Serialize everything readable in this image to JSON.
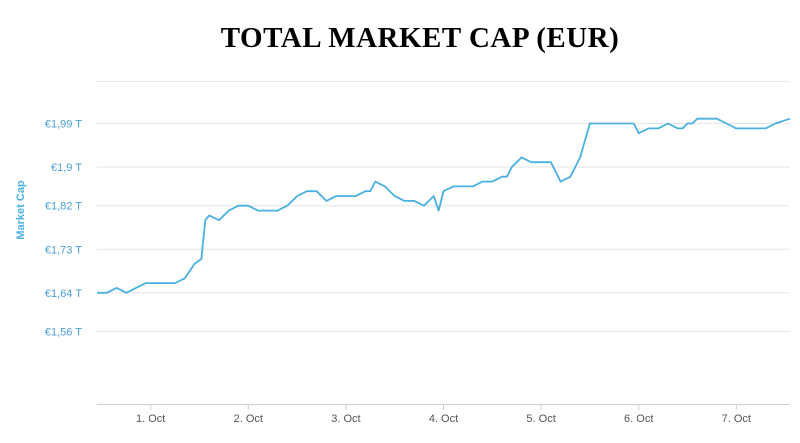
{
  "chart_data": {
    "type": "line",
    "title": "TOTAL MARKET CAP (EUR)",
    "ylabel": "Market Cap",
    "xlabel": "",
    "y_ticks": [
      "€1,56 T",
      "€1,64 T",
      "€1,73 T",
      "€1,82 T",
      "€1,9 T",
      "€1,99 T"
    ],
    "y_tick_values": [
      1.56,
      1.64,
      1.73,
      1.82,
      1.9,
      1.99
    ],
    "x_ticks": [
      "1. Oct",
      "2. Oct",
      "3. Oct",
      "4. Oct",
      "5. Oct",
      "6. Oct",
      "7. Oct"
    ],
    "x_tick_values": [
      1,
      2,
      3,
      4,
      5,
      6,
      7
    ],
    "xlim": [
      0.45,
      7.55
    ],
    "ylim": [
      1.41,
      2.08
    ],
    "grid": true,
    "legend": "none",
    "colors": {
      "line": "#4ab0e0",
      "grid": "#e6e6e6"
    },
    "series": [
      {
        "x": [
          0.45,
          0.55,
          0.65,
          0.75,
          0.85,
          0.95,
          1.05,
          1.15,
          1.25,
          1.35,
          1.45,
          1.52,
          1.56,
          1.6,
          1.7,
          1.8,
          1.9,
          2.0,
          2.1,
          2.2,
          2.3,
          2.4,
          2.5,
          2.6,
          2.7,
          2.8,
          2.9,
          3.0,
          3.1,
          3.2,
          3.25,
          3.3,
          3.4,
          3.5,
          3.6,
          3.7,
          3.8,
          3.85,
          3.9,
          3.95,
          4.0,
          4.1,
          4.2,
          4.3,
          4.4,
          4.5,
          4.6,
          4.65,
          4.7,
          4.8,
          4.9,
          5.0,
          5.1,
          5.2,
          5.3,
          5.4,
          5.5,
          5.6,
          5.7,
          5.8,
          5.9,
          5.95,
          6.0,
          6.1,
          6.2,
          6.3,
          6.4,
          6.45,
          6.5,
          6.55,
          6.6,
          6.65,
          6.7,
          6.8,
          6.9,
          7.0,
          7.05,
          7.1,
          7.2,
          7.3,
          7.4,
          7.55
        ],
        "values": [
          1.64,
          1.64,
          1.65,
          1.64,
          1.65,
          1.66,
          1.66,
          1.66,
          1.66,
          1.67,
          1.7,
          1.71,
          1.79,
          1.8,
          1.79,
          1.81,
          1.82,
          1.82,
          1.81,
          1.81,
          1.81,
          1.82,
          1.84,
          1.85,
          1.85,
          1.83,
          1.84,
          1.84,
          1.84,
          1.85,
          1.85,
          1.87,
          1.86,
          1.84,
          1.83,
          1.83,
          1.82,
          1.83,
          1.84,
          1.81,
          1.85,
          1.86,
          1.86,
          1.86,
          1.87,
          1.87,
          1.88,
          1.88,
          1.9,
          1.92,
          1.91,
          1.91,
          1.91,
          1.87,
          1.88,
          1.92,
          1.99,
          1.99,
          1.99,
          1.99,
          1.99,
          1.99,
          1.97,
          1.98,
          1.98,
          1.99,
          1.98,
          1.98,
          1.99,
          1.99,
          2.0,
          2.0,
          2.0,
          2.0,
          1.99,
          1.98,
          1.98,
          1.98,
          1.98,
          1.98,
          1.99,
          2.0
        ]
      }
    ]
  }
}
